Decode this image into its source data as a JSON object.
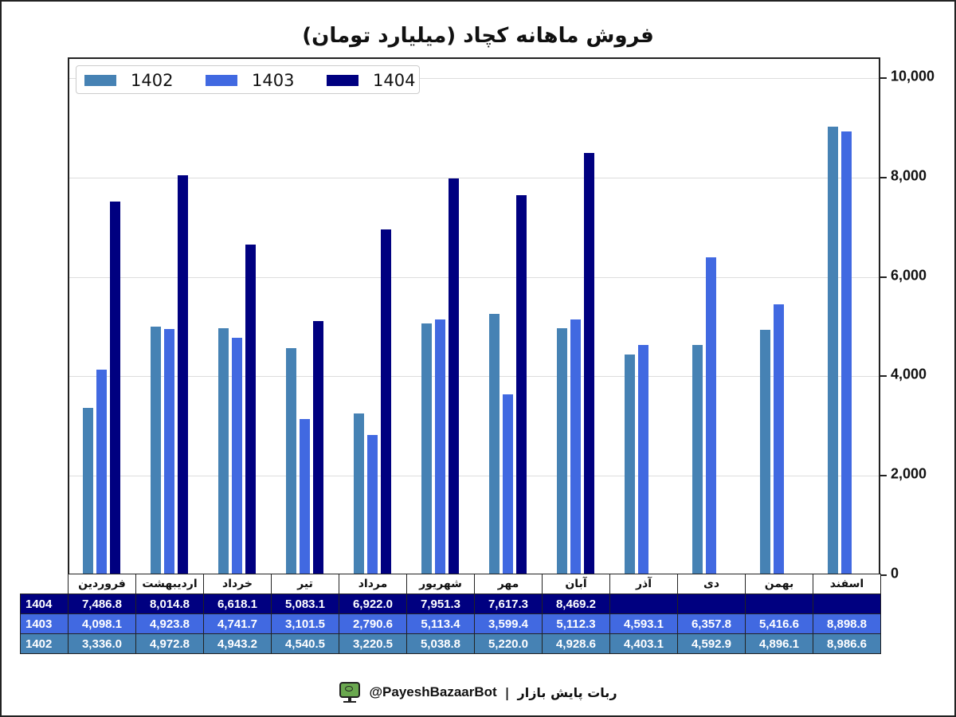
{
  "title": "فروش ماهانه کچاد (میلیارد تومان)",
  "legend": [
    {
      "label": "1402",
      "color": "#4682b4"
    },
    {
      "label": "1403",
      "color": "#4169e1"
    },
    {
      "label": "1404",
      "color": "#000080"
    }
  ],
  "y_axis": {
    "ticks": [
      {
        "value": 0,
        "label": "0"
      },
      {
        "value": 2000,
        "label": "2,000"
      },
      {
        "value": 4000,
        "label": "4,000"
      },
      {
        "value": 6000,
        "label": "6,000"
      },
      {
        "value": 8000,
        "label": "8,000"
      },
      {
        "value": 10000,
        "label": "10,000"
      }
    ]
  },
  "table": {
    "months": [
      "فروردین",
      "اردیبهشت",
      "خرداد",
      "تیر",
      "مرداد",
      "شهریور",
      "مهر",
      "آبان",
      "آذر",
      "دی",
      "بهمن",
      "اسفند"
    ],
    "rows": [
      {
        "year": "1404",
        "values": [
          "7,486.8",
          "8,014.8",
          "6,618.1",
          "5,083.1",
          "6,922.0",
          "7,951.3",
          "7,617.3",
          "8,469.2",
          "",
          "",
          "",
          ""
        ]
      },
      {
        "year": "1403",
        "values": [
          "4,098.1",
          "4,923.8",
          "4,741.7",
          "3,101.5",
          "2,790.6",
          "5,113.4",
          "3,599.4",
          "5,112.3",
          "4,593.1",
          "6,357.8",
          "5,416.6",
          "8,898.8"
        ]
      },
      {
        "year": "1402",
        "values": [
          "3,336.0",
          "4,972.8",
          "4,943.2",
          "4,540.5",
          "3,220.5",
          "5,038.8",
          "5,220.0",
          "4,928.6",
          "4,403.1",
          "4,592.9",
          "4,896.1",
          "8,986.6"
        ]
      }
    ]
  },
  "footer": {
    "bot_name": "ربات پایش بازار",
    "separator": "|",
    "handle": "@PayeshBazaarBot",
    "icon": "monitor-eye-icon"
  },
  "chart_data": {
    "type": "bar",
    "title": "فروش ماهانه کچاد (میلیارد تومان)",
    "xlabel": "",
    "ylabel": "",
    "ylim": [
      0,
      10000
    ],
    "y_axis_position": "right",
    "grid": true,
    "legend_position": "upper left",
    "categories": [
      "فروردین",
      "اردیبهشت",
      "خرداد",
      "تیر",
      "مرداد",
      "شهریور",
      "مهر",
      "آبان",
      "آذر",
      "دی",
      "بهمن",
      "اسفند"
    ],
    "series": [
      {
        "name": "1402",
        "color": "#4682b4",
        "values": [
          3336.0,
          4972.8,
          4943.2,
          4540.5,
          3220.5,
          5038.8,
          5220.0,
          4928.6,
          4403.1,
          4592.9,
          4896.1,
          8986.6
        ]
      },
      {
        "name": "1403",
        "color": "#4169e1",
        "values": [
          4098.1,
          4923.8,
          4741.7,
          3101.5,
          2790.6,
          5113.4,
          3599.4,
          5112.3,
          4593.1,
          6357.8,
          5416.6,
          8898.8
        ]
      },
      {
        "name": "1404",
        "color": "#000080",
        "values": [
          7486.8,
          8014.8,
          6618.1,
          5083.1,
          6922.0,
          7951.3,
          7617.3,
          8469.2,
          null,
          null,
          null,
          null
        ]
      }
    ]
  }
}
